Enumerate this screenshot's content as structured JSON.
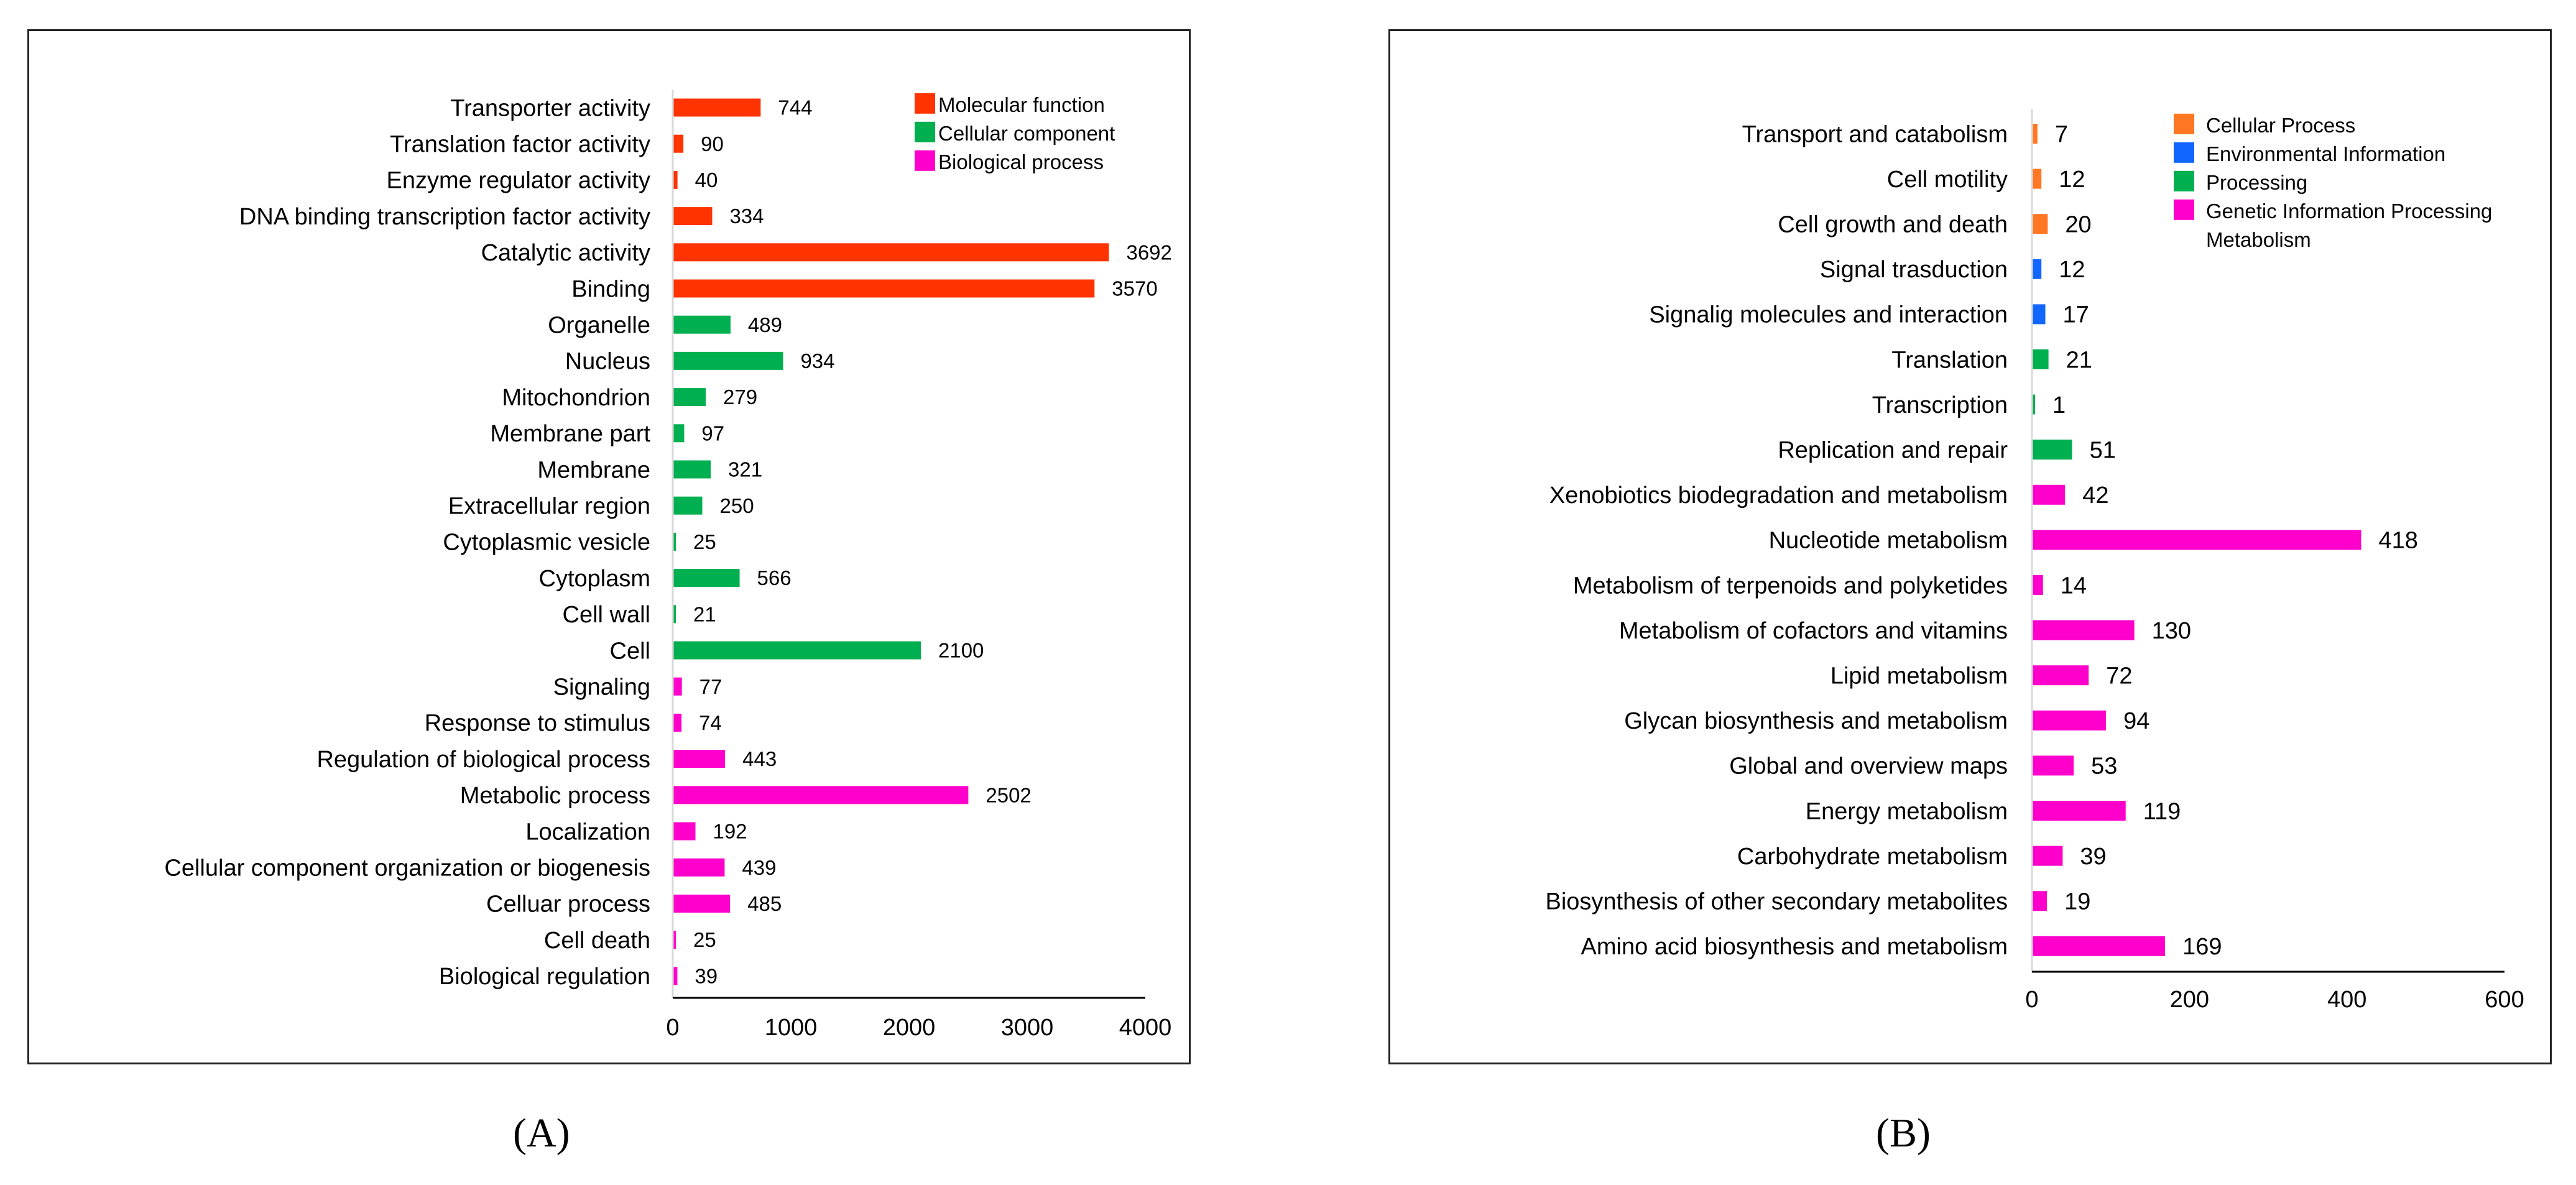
{
  "chart_data": [
    {
      "type": "bar",
      "orientation": "horizontal",
      "panel_label": "(A)",
      "xlim": [
        0,
        4000
      ],
      "xticks": [
        0,
        1000,
        2000,
        3000,
        4000
      ],
      "legend_position": "top-right",
      "legend": [
        {
          "label": "Molecular function",
          "color": "#ff3300"
        },
        {
          "label": "Cellular component",
          "color": "#00b050"
        },
        {
          "label": "Biological process",
          "color": "#ff00cc"
        }
      ],
      "categories": [
        "Transporter activity",
        "Translation factor activity",
        "Enzyme regulator activity",
        "DNA binding transcription factor activity",
        "Catalytic activity",
        "Binding",
        "Organelle",
        "Nucleus",
        "Mitochondrion",
        "Membrane part",
        "Membrane",
        "Extracellular region",
        "Cytoplasmic vesicle",
        "Cytoplasm",
        "Cell wall",
        "Cell",
        "Signaling",
        "Response to stimulus",
        "Regulation of biological process",
        "Metabolic process",
        "Localization",
        "Cellular component organization or biogenesis",
        "Celluar process",
        "Cell death",
        "Biological regulation"
      ],
      "values": [
        744,
        90,
        40,
        334,
        3692,
        3570,
        489,
        934,
        279,
        97,
        321,
        250,
        25,
        566,
        21,
        2100,
        77,
        74,
        443,
        2502,
        192,
        439,
        485,
        25,
        39
      ],
      "groups": [
        0,
        0,
        0,
        0,
        0,
        0,
        1,
        1,
        1,
        1,
        1,
        1,
        1,
        1,
        1,
        1,
        2,
        2,
        2,
        2,
        2,
        2,
        2,
        2,
        2
      ]
    },
    {
      "type": "bar",
      "orientation": "horizontal",
      "panel_label": "(B)",
      "xlim": [
        0,
        600
      ],
      "xticks": [
        0,
        200,
        400,
        600
      ],
      "legend_position": "top-right",
      "legend": [
        {
          "label": "Cellular Process",
          "color": "#ff7722"
        },
        {
          "label": "Environmental Information",
          "color": "#1166ff"
        },
        {
          "label": "Processing",
          "color": "#00b050"
        },
        {
          "label": "Genetic Information Processing",
          "color": "#ff00cc"
        },
        {
          "label": "Metabolism",
          "color": null
        }
      ],
      "categories": [
        "Transport and catabolism",
        "Cell motility",
        "Cell growth and death",
        "Signal trasduction",
        "Signalig molecules and interaction",
        "Translation",
        "Transcription",
        "Replication and repair",
        "Xenobiotics biodegradation and metabolism",
        "Nucleotide metabolism",
        "Metabolism of terpenoids and polyketides",
        "Metabolism of cofactors and vitamins",
        "Lipid metabolism",
        "Glycan biosynthesis and metabolism",
        "Global and overview maps",
        "Energy metabolism",
        "Carbohydrate metabolism",
        "Biosynthesis of other secondary metabolites",
        "Amino acid biosynthesis and metabolism"
      ],
      "values": [
        7,
        12,
        20,
        12,
        17,
        21,
        1,
        51,
        42,
        418,
        14,
        130,
        72,
        94,
        53,
        119,
        39,
        19,
        169
      ],
      "groups": [
        0,
        0,
        0,
        1,
        1,
        2,
        2,
        2,
        3,
        3,
        3,
        3,
        3,
        3,
        3,
        3,
        3,
        3,
        3
      ]
    }
  ]
}
